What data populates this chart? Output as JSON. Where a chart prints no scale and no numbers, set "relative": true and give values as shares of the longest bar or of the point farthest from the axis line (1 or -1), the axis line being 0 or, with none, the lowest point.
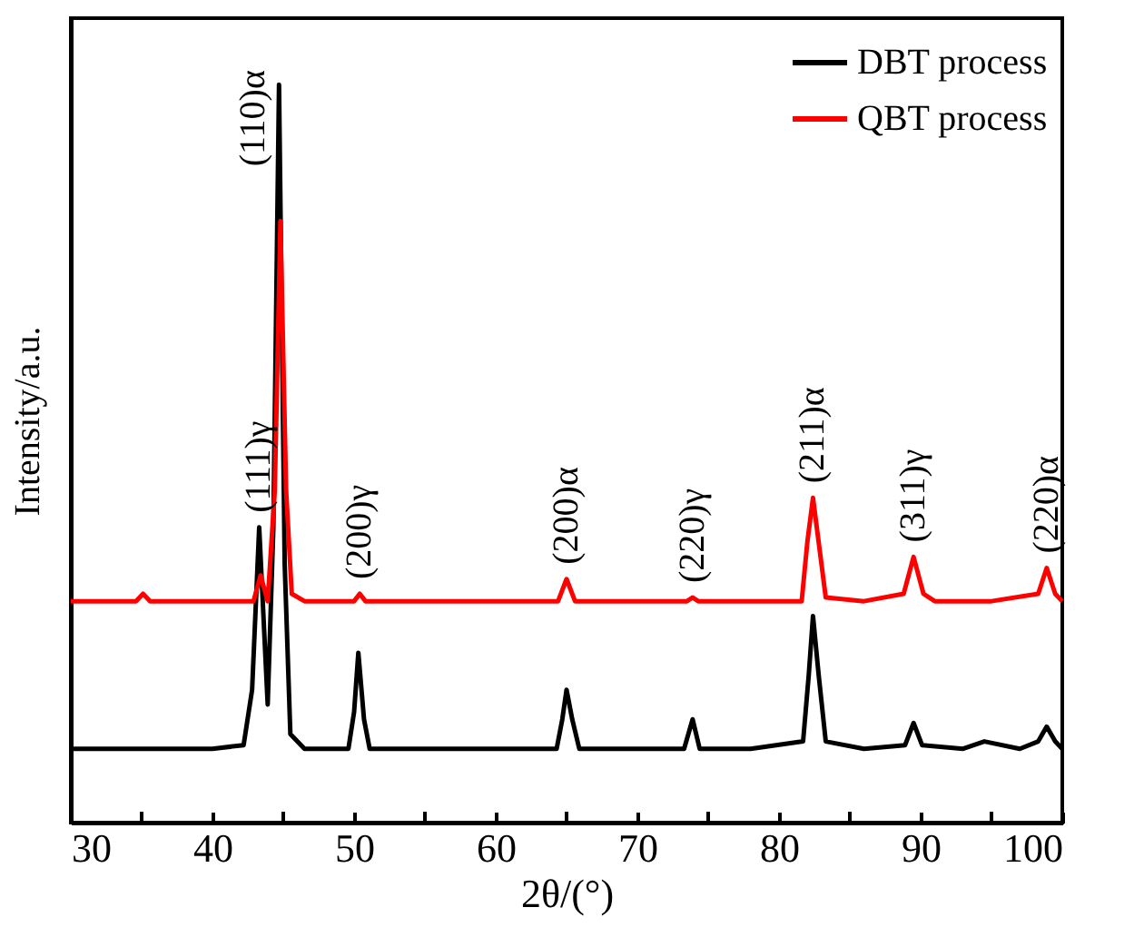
{
  "chart_data": {
    "type": "line",
    "relative": true,
    "xlabel": "2θ/(°)",
    "ylabel": "Intensity/a.u.",
    "xlim": [
      30,
      100
    ],
    "xticks": [
      30,
      {
        "value": 35,
        "label": null
      },
      40,
      {
        "value": 45,
        "label": null
      },
      50,
      {
        "value": 55,
        "label": null
      },
      60,
      {
        "value": 65,
        "label": null
      },
      70,
      {
        "value": 75,
        "label": null
      },
      80,
      {
        "value": 85,
        "label": null
      },
      90,
      {
        "value": 95,
        "label": null
      },
      100
    ],
    "legend": "top right",
    "grid": false,
    "line_style": "solid",
    "marker": "none",
    "series": [
      {
        "name": "DBT process",
        "color": "#000000",
        "x": [
          30,
          35,
          40,
          42.2,
          42.8,
          43.3,
          43.9,
          44.3,
          44.7,
          45.1,
          45.5,
          46.5,
          49.6,
          50.0,
          50.3,
          50.7,
          51.1,
          55,
          60,
          64.3,
          64.7,
          65.0,
          65.4,
          65.9,
          70,
          73.3,
          73.9,
          74.4,
          78,
          81.7,
          82.1,
          82.4,
          82.8,
          83.3,
          86,
          88.9,
          89.5,
          90.1,
          93,
          94.5,
          97,
          98.3,
          98.9,
          99.5,
          100
        ],
        "values": [
          0.1,
          0.1,
          0.1,
          0.105,
          0.18,
          0.4,
          0.16,
          0.4,
          1.0,
          0.35,
          0.12,
          0.1,
          0.1,
          0.15,
          0.23,
          0.14,
          0.1,
          0.1,
          0.1,
          0.1,
          0.14,
          0.18,
          0.14,
          0.1,
          0.1,
          0.1,
          0.14,
          0.1,
          0.1,
          0.11,
          0.2,
          0.28,
          0.2,
          0.11,
          0.1,
          0.105,
          0.135,
          0.105,
          0.1,
          0.11,
          0.1,
          0.11,
          0.13,
          0.11,
          0.1
        ]
      },
      {
        "name": "QBT process",
        "color": "#ff0000",
        "x": [
          30,
          34.6,
          35.1,
          35.6,
          40,
          42.9,
          43.4,
          43.9,
          44.4,
          44.8,
          45.2,
          45.6,
          46.5,
          50,
          50.4,
          50.8,
          60,
          64.4,
          65.0,
          65.6,
          70,
          73.5,
          73.9,
          74.3,
          80,
          81.6,
          82.0,
          82.4,
          82.8,
          83.3,
          86,
          88.8,
          89.5,
          90.2,
          91,
          95,
          98.3,
          98.9,
          99.5,
          100
        ],
        "values": [
          0.3,
          0.3,
          0.31,
          0.3,
          0.3,
          0.3,
          0.335,
          0.3,
          0.45,
          0.815,
          0.45,
          0.31,
          0.3,
          0.3,
          0.31,
          0.3,
          0.3,
          0.3,
          0.33,
          0.3,
          0.3,
          0.3,
          0.305,
          0.3,
          0.3,
          0.3,
          0.38,
          0.44,
          0.38,
          0.305,
          0.3,
          0.31,
          0.36,
          0.31,
          0.3,
          0.3,
          0.31,
          0.345,
          0.31,
          0.3
        ]
      }
    ],
    "annotations": [
      {
        "text": "(111)γ",
        "x": 43.3,
        "y": 0.4
      },
      {
        "text": "(110)α",
        "x": 44.7,
        "y": 1.0
      },
      {
        "text": "(200)γ",
        "x": 50.4,
        "y": 0.31
      },
      {
        "text": "(200)α",
        "x": 65.0,
        "y": 0.33
      },
      {
        "text": "(220)γ",
        "x": 73.9,
        "y": 0.305
      },
      {
        "text": "(211)α",
        "x": 82.4,
        "y": 0.44
      },
      {
        "text": "(311)γ",
        "x": 89.5,
        "y": 0.36
      },
      {
        "text": "(220)α",
        "x": 98.9,
        "y": 0.345
      }
    ]
  }
}
